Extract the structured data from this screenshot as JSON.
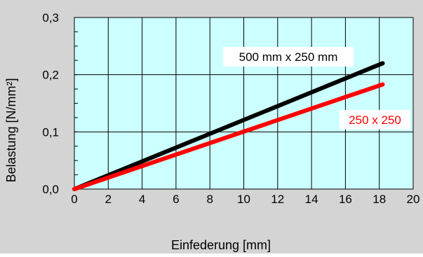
{
  "chart_data": {
    "type": "line",
    "title": "",
    "xlabel": "Einfederung [mm]",
    "ylabel": "Belastung [N/mm²]",
    "xlim": [
      0,
      20
    ],
    "ylim": [
      0,
      0.3
    ],
    "x_ticks": [
      "0",
      "2",
      "4",
      "6",
      "8",
      "10",
      "12",
      "14",
      "16",
      "18",
      "20"
    ],
    "y_ticks": [
      "0,0",
      "0,1",
      "0,2",
      "0,3"
    ],
    "grid": true,
    "series": [
      {
        "name": "500 mm x 250 mm",
        "color": "#000000",
        "x": [
          0,
          18.2
        ],
        "y": [
          0,
          0.22
        ]
      },
      {
        "name": "250 x 250",
        "color": "#ff0000",
        "x": [
          0,
          18.2
        ],
        "y": [
          0,
          0.183
        ]
      }
    ]
  },
  "colors": {
    "background": "#d4d4d4",
    "plot_area": "#ccffff",
    "grid": "#000000"
  }
}
